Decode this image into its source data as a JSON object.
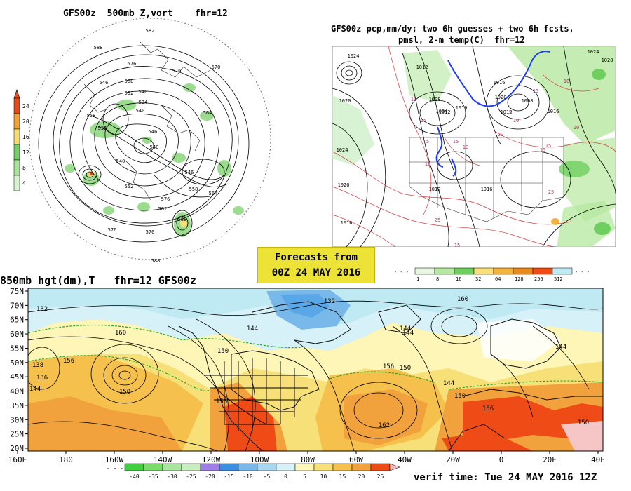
{
  "titles": {
    "top_left": "GFS00z  500mb Z,vort    fhr=12",
    "top_right_line1": "GFS00z pcp,mm/dy; two 6h guesses + two 6h fcsts,",
    "top_right_line2": "pmsl, 2-m temp(C)  fhr=12",
    "bottom": "850mb hgt(dm),T   fhr=12 GFS00z",
    "banner_line1": "Forecasts from",
    "banner_line2": "00Z 24 MAY 2016",
    "verif": "verif time: Tue 24 MAY 2016 12Z"
  },
  "colors": {
    "warm": "#f2a23c",
    "hot": "#ef4b16",
    "light": "#fae07a",
    "cool": "#bfe9f3",
    "green": "#7cd26b",
    "blue": "#3b8ee0"
  },
  "chart_data": [
    {
      "type": "heatmap",
      "title": "GFS00z  500mb Z,vort    fhr=12",
      "colorbar": {
        "labels": [
          "24",
          "20",
          "16",
          "12",
          "8",
          "4"
        ],
        "colors": [
          "#e24c1c",
          "#f2a23c",
          "#f6dc75",
          "#74cd67",
          "#a8e39b",
          "#d8f2cf"
        ]
      },
      "contour_labels": [
        "582",
        "588",
        "576",
        "570",
        "576",
        "588",
        "546",
        "552",
        "540",
        "558",
        "540",
        "534",
        "564",
        "534",
        "546",
        "540",
        "540",
        "546",
        "552",
        "558",
        "564",
        "576",
        "582",
        "588",
        "576",
        "570",
        "588"
      ]
    },
    {
      "type": "heatmap",
      "title": "GFS00z pcp,mm/dy; two 6h guesses + two 6h fcsts, pmsl, 2-m temp(C)  fhr=12",
      "colorbar": {
        "labels": [
          "1",
          "8",
          "16",
          "32",
          "64",
          "128",
          "256",
          "512"
        ],
        "colors": [
          "#e6f6e0",
          "#b6e8a0",
          "#6fcf5e",
          "#fae07a",
          "#f2b23c",
          "#e88a1c",
          "#ef4b16",
          "#bfe9f3"
        ]
      },
      "isobar_labels": [
        "1024",
        "1020",
        "1024",
        "1020",
        "1016",
        "1012",
        "1008",
        "1004",
        "1012",
        "1016",
        "1020",
        "1016",
        "1012",
        "1008",
        "1016",
        "1024",
        "1028",
        "1016",
        "1012"
      ],
      "temp_labels": [
        "10",
        "15",
        "5",
        "10",
        "15",
        "10",
        "5",
        "10",
        "15",
        "20",
        "15",
        "25",
        "25",
        "15",
        "10",
        "10",
        "15"
      ]
    },
    {
      "type": "heatmap",
      "title": "850mb hgt(dm),T   fhr=12 GFS00z",
      "y_ticks": [
        "75N",
        "70N",
        "65N",
        "60N",
        "55N",
        "50N",
        "45N",
        "40N",
        "35N",
        "30N",
        "25N",
        "20N"
      ],
      "x_ticks": [
        "160E",
        "180",
        "160W",
        "140W",
        "120W",
        "100W",
        "80W",
        "60W",
        "40W",
        "20W",
        "0",
        "20E",
        "40E"
      ],
      "colorbar": {
        "labels": [
          "-40",
          "-35",
          "-30",
          "-25",
          "-20",
          "-15",
          "-10",
          "-5",
          "0",
          "5",
          "10",
          "15",
          "20",
          "25"
        ],
        "colors": [
          "#3fcf3f",
          "#7bdc6a",
          "#a8e6a0",
          "#c8eec0",
          "#9f7fe6",
          "#3b8ee0",
          "#79b9ea",
          "#a8d8f0",
          "#d6f1f8",
          "#fdf6b6",
          "#f8e079",
          "#f5c04c",
          "#f2a23c",
          "#ef4b16"
        ]
      },
      "contour_labels": [
        "132",
        "136",
        "144",
        "150",
        "156",
        "160",
        "144",
        "150",
        "156",
        "132",
        "138",
        "144",
        "150",
        "144",
        "156",
        "162",
        "144",
        "150",
        "156",
        "150",
        "160",
        "144"
      ]
    }
  ]
}
